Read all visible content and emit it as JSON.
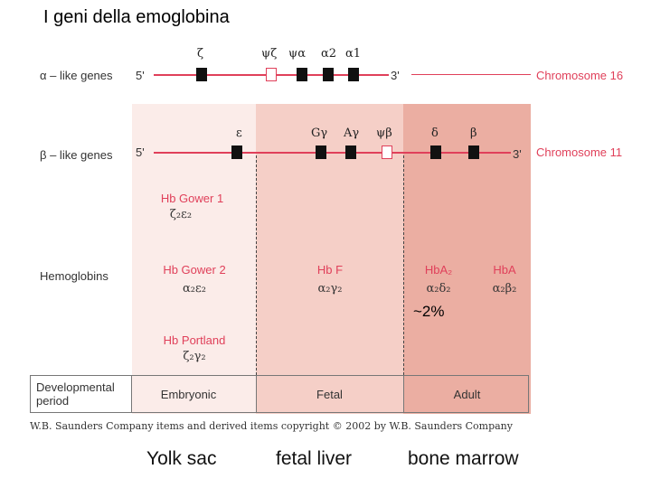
{
  "title": "I geni della emoglobina",
  "rows": {
    "alpha_label": "α – like genes",
    "beta_label": "β – like genes",
    "hemoglobins_label": "Hemoglobins",
    "five_prime": "5'",
    "three_prime": "3'",
    "chr16": "Chromosome 16",
    "chr11": "Chromosome 11"
  },
  "alpha_genes": [
    "ζ",
    "ψζ",
    "ψα",
    "α2",
    "α1"
  ],
  "beta_genes": [
    "ε",
    "Gγ",
    "Aγ",
    "ψβ",
    "δ",
    "β"
  ],
  "hemoglobins": [
    {
      "name": "Hb Gower 1",
      "chains": "ζ₂ε₂"
    },
    {
      "name": "Hb Gower 2",
      "chains": "α₂ε₂"
    },
    {
      "name": "Hb Portland",
      "chains": "ζ₂γ₂"
    },
    {
      "name": "Hb F",
      "chains": "α₂γ₂"
    },
    {
      "name": "HbA₂",
      "chains": "α₂δ₂"
    },
    {
      "name": "HbA",
      "chains": "α₂β₂"
    }
  ],
  "percent_note": "~2%",
  "period": {
    "label": "Developmental period",
    "stages": [
      "Embryonic",
      "Fetal",
      "Adult"
    ]
  },
  "copyright": "W.B. Saunders Company items and derived items copyright © 2002 by W.B. Saunders Company",
  "sites": [
    "Yolk sac",
    "fetal liver",
    "bone marrow"
  ],
  "colors": {
    "line": "#e0405a",
    "embryonic_bg": "#fbece9",
    "fetal_bg": "#f5cfc7",
    "adult_bg": "#ebaea2"
  }
}
